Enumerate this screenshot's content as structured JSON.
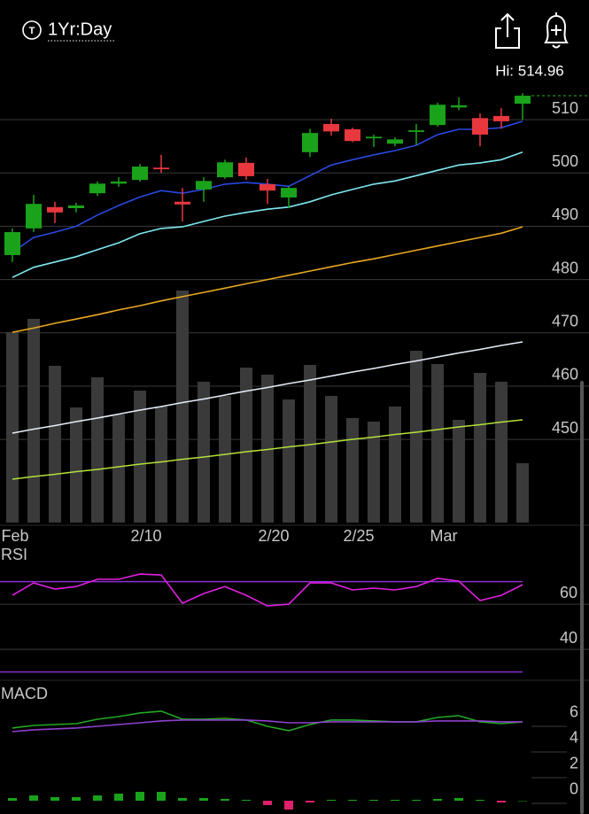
{
  "header": {
    "period": "1Yr:Day",
    "high": "Hi: 514.96"
  },
  "chart_data": [
    {
      "type": "candlestick",
      "categories": [
        "Feb",
        null,
        null,
        null,
        null,
        null,
        "2/10",
        null,
        null,
        null,
        null,
        null,
        "2/20",
        null,
        null,
        null,
        "2/25",
        null,
        null,
        null,
        "Mar",
        null,
        null,
        null,
        null
      ],
      "open": [
        484.6,
        489.6,
        493.6,
        493.4,
        496.2,
        498.0,
        498.7,
        501.0,
        494.6,
        496.9,
        499.2,
        501.9,
        497.9,
        495.4,
        503.9,
        509.2,
        508.2,
        506.5,
        505.5,
        507.7,
        509.0,
        512.3,
        510.3,
        510.7,
        513.0
      ],
      "high": [
        489.6,
        495.9,
        494.6,
        494.4,
        498.4,
        499.2,
        501.7,
        503.4,
        497.2,
        499.2,
        502.5,
        502.9,
        498.9,
        497.5,
        508.3,
        510.2,
        508.5,
        507.2,
        506.7,
        509.2,
        513.2,
        514.2,
        511.2,
        512.2,
        514.96
      ],
      "low": [
        483.3,
        488.9,
        490.6,
        492.6,
        495.7,
        497.4,
        498.4,
        500.0,
        490.9,
        494.6,
        498.9,
        498.7,
        494.2,
        493.4,
        503.0,
        507.0,
        505.8,
        504.9,
        505.0,
        505.3,
        508.7,
        511.8,
        505.0,
        508.3,
        510.0
      ],
      "close": [
        488.9,
        494.2,
        492.6,
        493.9,
        498.0,
        498.4,
        501.2,
        500.7,
        494.1,
        498.5,
        502.0,
        499.4,
        496.7,
        497.2,
        507.5,
        507.8,
        506.0,
        506.8,
        506.3,
        508.0,
        512.8,
        512.7,
        507.2,
        509.7,
        514.5
      ],
      "up_color": "#1aa31a",
      "down_color": "#e8383d",
      "ylim": [
        434.4,
        517.5
      ],
      "yticks": [
        450,
        460,
        470,
        480,
        490,
        500,
        510
      ],
      "grid": true,
      "y2lim": [
        0,
        100
      ],
      "series": [
        {
          "type": "bar",
          "axis": "y2",
          "color": "#3a3a3a",
          "values": [
            43,
            46,
            35.4,
            26,
            32.8,
            24.4,
            29.8,
            26.2,
            52.4,
            31.8,
            28.6,
            35,
            33.4,
            27.8,
            35.6,
            28.6,
            23.6,
            22.8,
            26.2,
            38.8,
            35.8,
            23.2,
            33.8,
            31.8,
            13.4
          ]
        },
        {
          "type": "line",
          "axis": "y2",
          "color": "#e6eef8",
          "values": [
            20.2,
            21.1,
            21.9,
            22.8,
            23.6,
            24.5,
            25.4,
            26.2,
            27.1,
            27.9,
            28.8,
            29.7,
            30.5,
            31.4,
            32.2,
            33.1,
            34.0,
            34.8,
            35.7,
            36.5,
            37.4,
            38.3,
            39.1,
            40.0,
            40.8
          ]
        },
        {
          "type": "line",
          "axis": "y2",
          "color": "#b4e03a",
          "values": [
            9.8,
            10.4,
            10.9,
            11.5,
            12.0,
            12.6,
            13.2,
            13.7,
            14.3,
            14.8,
            15.4,
            16.0,
            16.5,
            17.1,
            17.6,
            18.2,
            18.8,
            19.3,
            19.9,
            20.4,
            21.0,
            21.6,
            22.1,
            22.7,
            23.2
          ]
        },
        {
          "type": "line",
          "color": "#e8a820",
          "values": [
            470.1,
            470.9,
            471.8,
            472.6,
            473.4,
            474.3,
            475.1,
            476.0,
            476.8,
            477.6,
            478.4,
            479.2,
            480.0,
            480.8,
            481.6,
            482.4,
            483.2,
            483.9,
            484.7,
            485.5,
            486.3,
            487.1,
            487.9,
            488.7,
            489.9
          ]
        },
        {
          "type": "line",
          "color": "#7fe8f0",
          "values": [
            480.4,
            482.3,
            483.3,
            484.3,
            485.6,
            486.9,
            488.6,
            489.6,
            489.9,
            490.9,
            491.9,
            492.6,
            493.2,
            493.6,
            494.6,
            495.9,
            496.9,
            497.9,
            498.5,
            499.5,
            500.5,
            501.5,
            501.9,
            502.5,
            503.9
          ]
        },
        {
          "type": "line",
          "color": "#2a48e0",
          "values": [
            485.1,
            487.9,
            488.9,
            490.0,
            492.1,
            493.9,
            495.5,
            496.7,
            496.2,
            496.9,
            497.9,
            498.2,
            497.9,
            497.5,
            499.5,
            501.5,
            502.5,
            503.4,
            504.2,
            505.2,
            507.2,
            508.2,
            508.2,
            508.5,
            509.7
          ]
        }
      ]
    },
    {
      "type": "line",
      "title": "RSI",
      "ylim": [
        26.3,
        86.3
      ],
      "yticks": [
        40,
        60
      ],
      "grid": true,
      "levels": [
        30,
        70
      ],
      "level_color": "#8a2ed0",
      "series": [
        {
          "type": "line",
          "color": "#e020e0",
          "values": [
            63.9,
            69.4,
            66.7,
            67.8,
            71.0,
            71.0,
            73.3,
            72.9,
            60.4,
            64.7,
            67.8,
            63.9,
            59.2,
            60.0,
            69.4,
            69.4,
            66.3,
            67.1,
            66.3,
            67.8,
            71.4,
            70.2,
            61.6,
            63.9,
            68.6
          ]
        }
      ]
    },
    {
      "type": "line",
      "title": "MACD",
      "ylim": [
        -1.0,
        9.1
      ],
      "yticks": [
        0,
        2,
        4,
        6
      ],
      "grid": false,
      "series": [
        {
          "type": "bar",
          "color": "#1aa31a",
          "negative_color": "#e0206a",
          "values": [
            0.21,
            0.41,
            0.28,
            0.28,
            0.41,
            0.55,
            0.69,
            0.69,
            0.21,
            0.21,
            0.14,
            0.07,
            -0.34,
            -0.69,
            -0.14,
            0.07,
            0.07,
            0.07,
            0.07,
            0.07,
            0.14,
            0.21,
            0.07,
            -0.14,
            0.0
          ]
        },
        {
          "type": "line",
          "color": "#22a822",
          "values": [
            5.66,
            5.86,
            5.93,
            6.0,
            6.34,
            6.55,
            6.83,
            6.97,
            6.34,
            6.34,
            6.41,
            6.28,
            5.79,
            5.45,
            5.93,
            6.28,
            6.28,
            6.21,
            6.14,
            6.14,
            6.48,
            6.62,
            6.14,
            6.0,
            6.14
          ]
        },
        {
          "type": "line",
          "color": "#9040d0",
          "values": [
            5.38,
            5.52,
            5.59,
            5.66,
            5.79,
            5.93,
            6.07,
            6.21,
            6.28,
            6.28,
            6.28,
            6.28,
            6.21,
            6.07,
            6.07,
            6.14,
            6.14,
            6.14,
            6.14,
            6.14,
            6.21,
            6.21,
            6.21,
            6.14,
            6.14
          ]
        }
      ]
    }
  ]
}
